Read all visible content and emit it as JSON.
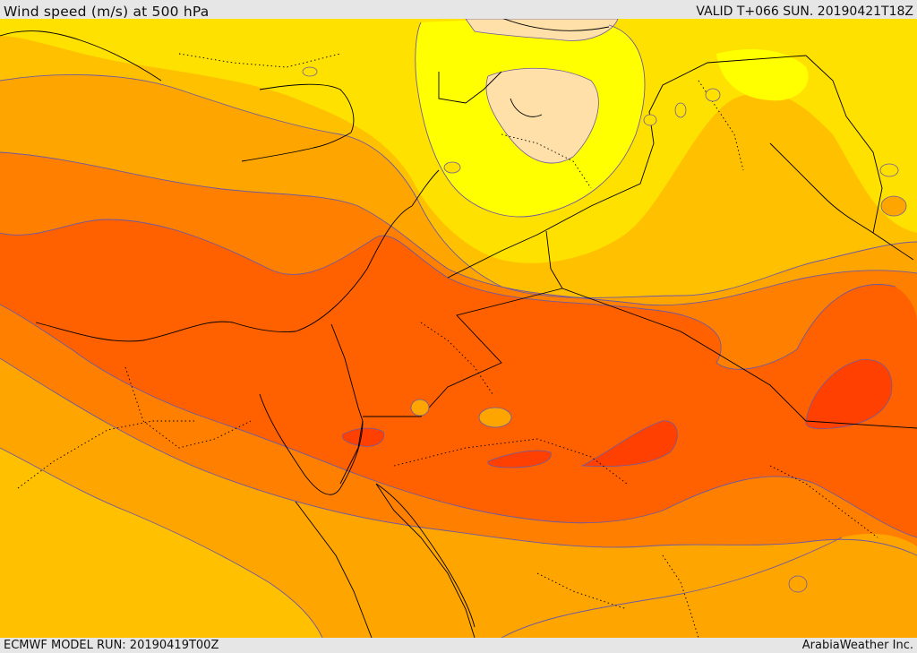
{
  "header": {
    "title": "Wind speed (m/s) at 500 hPa",
    "valid_time": "VALID T+066 SUN. 20190421T18Z"
  },
  "footer": {
    "model_run": "ECMWF MODEL RUN: 20190419T00Z",
    "credit": "ArabiaWeather Inc."
  },
  "map": {
    "variable": "wind speed",
    "units": "m/s",
    "level": "500 hPa",
    "palette": {
      "very_low": "#ffe0a8",
      "low": "#ffff00",
      "light": "#ffe100",
      "medium_low": "#ffc000",
      "medium": "#ffa500",
      "medium_high": "#ff8000",
      "high": "#ff6000",
      "very_high": "#ff4000",
      "contour_line": "#6e5aa0",
      "border_line": "#000000"
    }
  }
}
